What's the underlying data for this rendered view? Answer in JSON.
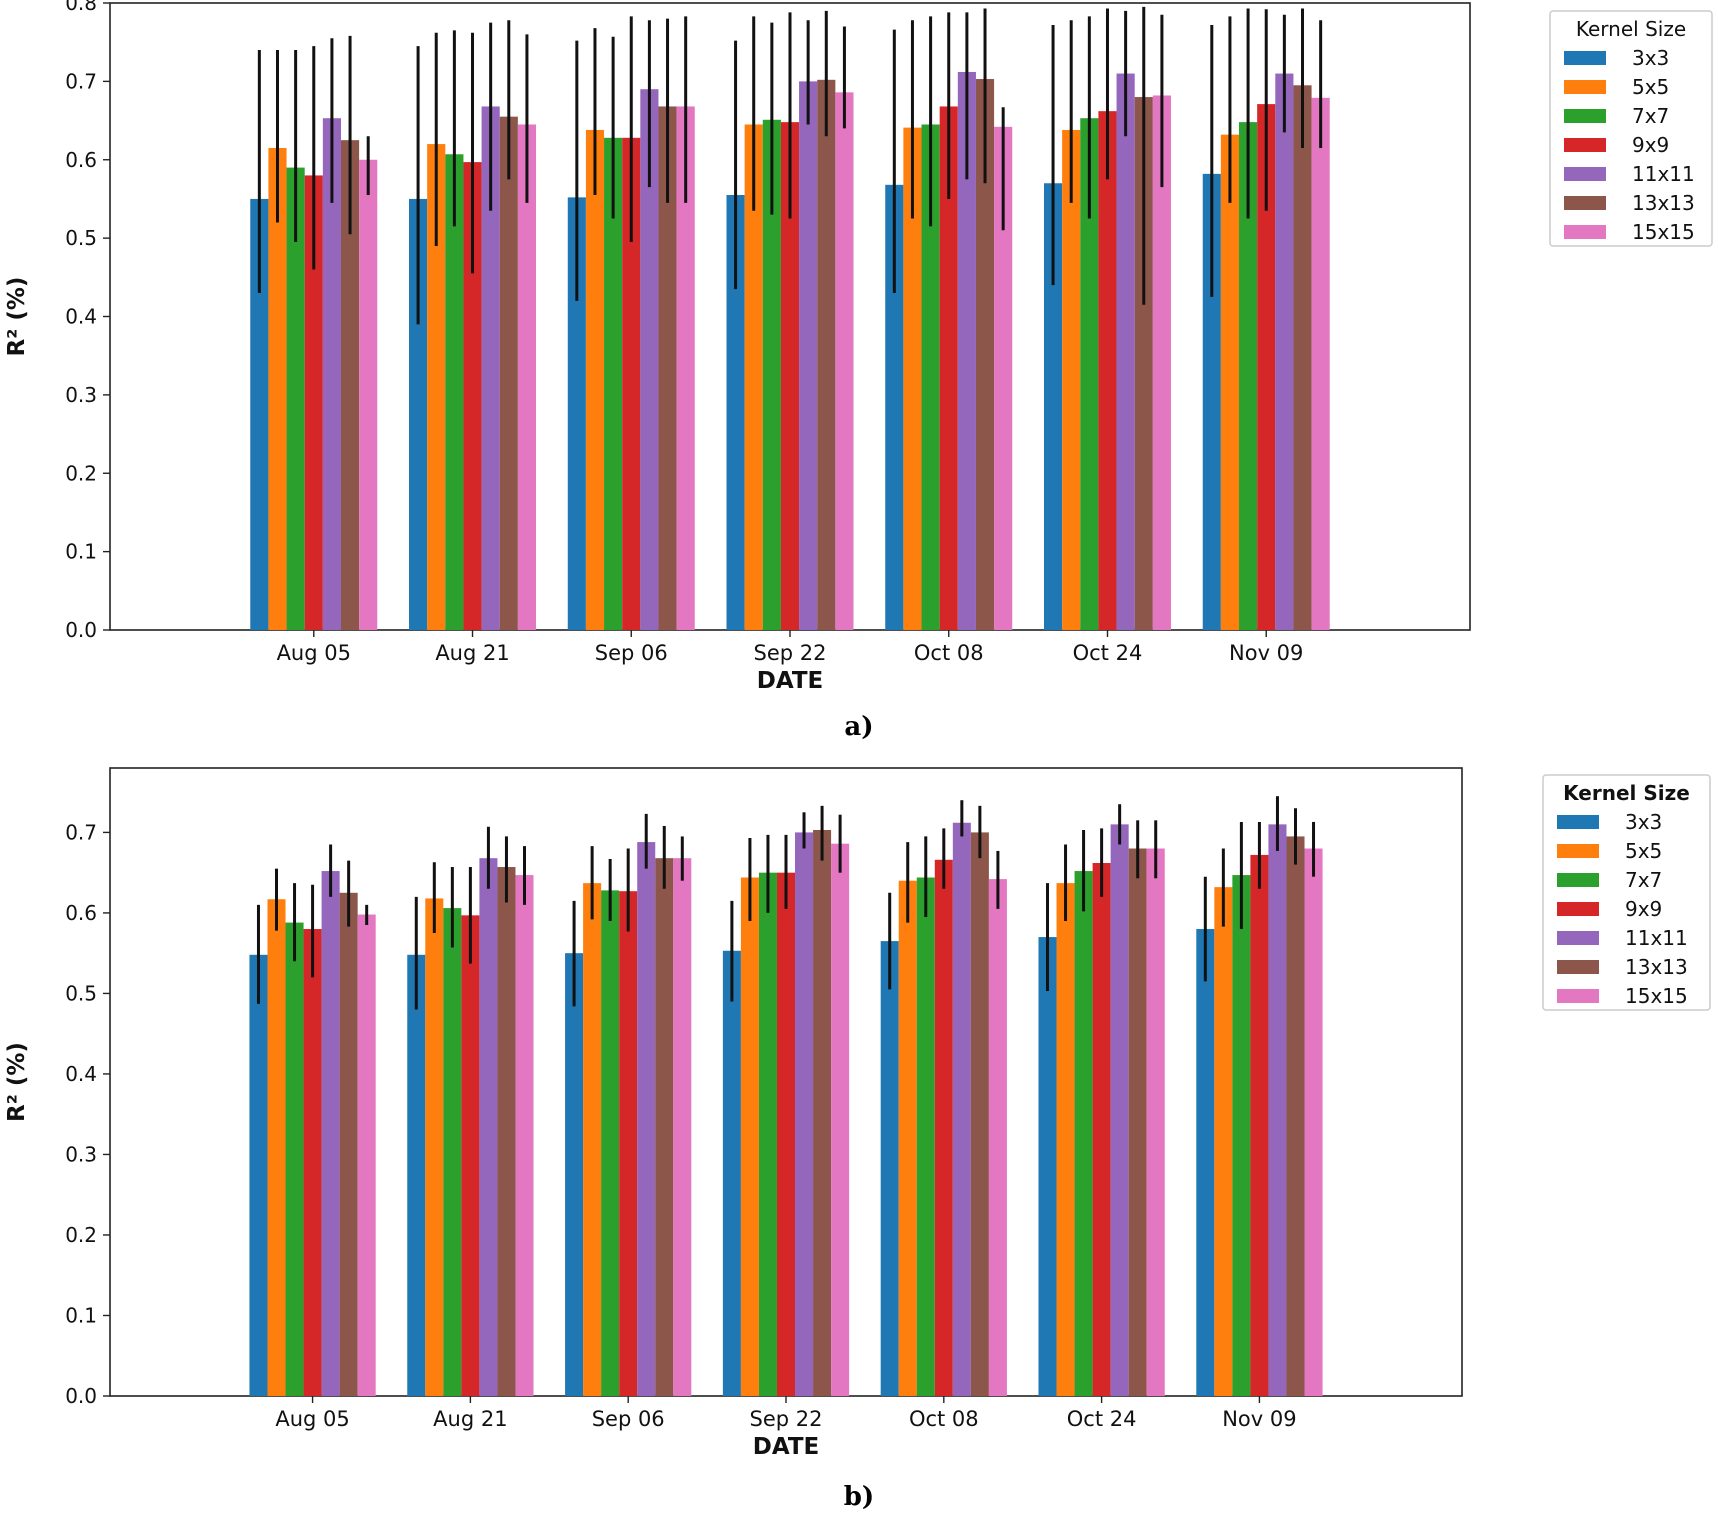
{
  "chart_data": [
    {
      "type": "bar",
      "panel_label": "a)",
      "title": "",
      "xlabel": "DATE",
      "ylabel": "R² (%)",
      "ylim": [
        0,
        0.8
      ],
      "yticks": [
        "0.0",
        "0.1",
        "0.2",
        "0.3",
        "0.4",
        "0.5",
        "0.6",
        "0.7",
        "0.8"
      ],
      "grid": false,
      "legend_title": "Kernel Size",
      "legend_placement": "outside-right-top",
      "categories": [
        "Aug 05",
        "Aug 21",
        "Sep 06",
        "Sep 22",
        "Oct 08",
        "Oct 24",
        "Nov 09"
      ],
      "series": [
        {
          "name": "3x3",
          "color": "#1f77b4",
          "values": [
            0.55,
            0.55,
            0.552,
            0.555,
            0.568,
            0.57,
            0.582
          ],
          "err_low": [
            0.43,
            0.39,
            0.42,
            0.435,
            0.43,
            0.44,
            0.425
          ],
          "err_high": [
            0.74,
            0.745,
            0.752,
            0.752,
            0.766,
            0.772,
            0.772
          ]
        },
        {
          "name": "5x5",
          "color": "#ff7f0e",
          "values": [
            0.615,
            0.62,
            0.638,
            0.645,
            0.641,
            0.638,
            0.632
          ],
          "err_low": [
            0.52,
            0.49,
            0.555,
            0.535,
            0.525,
            0.545,
            0.545
          ],
          "err_high": [
            0.74,
            0.762,
            0.768,
            0.783,
            0.778,
            0.778,
            0.783
          ]
        },
        {
          "name": "7x7",
          "color": "#2ca02c",
          "values": [
            0.59,
            0.607,
            0.628,
            0.651,
            0.645,
            0.653,
            0.648
          ],
          "err_low": [
            0.495,
            0.515,
            0.525,
            0.53,
            0.515,
            0.525,
            0.525
          ],
          "err_high": [
            0.74,
            0.765,
            0.757,
            0.775,
            0.783,
            0.783,
            0.793
          ]
        },
        {
          "name": "9x9",
          "color": "#d62728",
          "values": [
            0.58,
            0.597,
            0.628,
            0.648,
            0.668,
            0.662,
            0.671
          ],
          "err_low": [
            0.46,
            0.455,
            0.495,
            0.525,
            0.55,
            0.575,
            0.535
          ],
          "err_high": [
            0.745,
            0.762,
            0.783,
            0.788,
            0.788,
            0.793,
            0.792
          ]
        },
        {
          "name": "11x11",
          "color": "#9467bd",
          "values": [
            0.653,
            0.668,
            0.69,
            0.7,
            0.712,
            0.71,
            0.71
          ],
          "err_low": [
            0.545,
            0.535,
            0.565,
            0.645,
            0.575,
            0.63,
            0.635
          ],
          "err_high": [
            0.755,
            0.775,
            0.778,
            0.778,
            0.788,
            0.79,
            0.785
          ]
        },
        {
          "name": "13x13",
          "color": "#8c564b",
          "values": [
            0.625,
            0.655,
            0.668,
            0.702,
            0.703,
            0.68,
            0.695
          ],
          "err_low": [
            0.505,
            0.575,
            0.545,
            0.63,
            0.57,
            0.415,
            0.615
          ],
          "err_high": [
            0.758,
            0.778,
            0.78,
            0.79,
            0.793,
            0.795,
            0.793
          ]
        },
        {
          "name": "15x15",
          "color": "#e377c2",
          "values": [
            0.6,
            0.645,
            0.668,
            0.686,
            0.642,
            0.682,
            0.679
          ],
          "err_low": [
            0.555,
            0.545,
            0.545,
            0.64,
            0.51,
            0.565,
            0.615
          ],
          "err_high": [
            0.63,
            0.76,
            0.783,
            0.77,
            0.667,
            0.785,
            0.778
          ]
        }
      ]
    },
    {
      "type": "bar",
      "panel_label": "b)",
      "title": "",
      "xlabel": "DATE",
      "ylabel": "R² (%)",
      "ylim": [
        0,
        0.78
      ],
      "yticks": [
        "0.0",
        "0.1",
        "0.2",
        "0.3",
        "0.4",
        "0.5",
        "0.6",
        "0.7"
      ],
      "grid": false,
      "legend_title": "Kernel Size",
      "legend_placement": "outside-right-top",
      "categories": [
        "Aug 05",
        "Aug 21",
        "Sep 06",
        "Sep 22",
        "Oct 08",
        "Oct 24",
        "Nov 09"
      ],
      "series": [
        {
          "name": "3x3",
          "color": "#1f77b4",
          "values": [
            0.548,
            0.548,
            0.55,
            0.553,
            0.565,
            0.57,
            0.58
          ],
          "err_low": [
            0.487,
            0.48,
            0.484,
            0.49,
            0.505,
            0.503,
            0.515
          ],
          "err_high": [
            0.61,
            0.62,
            0.615,
            0.615,
            0.625,
            0.637,
            0.645
          ]
        },
        {
          "name": "5x5",
          "color": "#ff7f0e",
          "values": [
            0.617,
            0.618,
            0.637,
            0.644,
            0.64,
            0.637,
            0.632
          ],
          "err_low": [
            0.578,
            0.575,
            0.592,
            0.59,
            0.588,
            0.59,
            0.583
          ],
          "err_high": [
            0.655,
            0.663,
            0.683,
            0.693,
            0.688,
            0.685,
            0.68
          ]
        },
        {
          "name": "7x7",
          "color": "#2ca02c",
          "values": [
            0.588,
            0.606,
            0.628,
            0.65,
            0.644,
            0.652,
            0.647
          ],
          "err_low": [
            0.54,
            0.557,
            0.59,
            0.6,
            0.595,
            0.602,
            0.58
          ],
          "err_high": [
            0.637,
            0.657,
            0.667,
            0.697,
            0.695,
            0.703,
            0.713
          ]
        },
        {
          "name": "9x9",
          "color": "#d62728",
          "values": [
            0.58,
            0.597,
            0.627,
            0.65,
            0.666,
            0.662,
            0.672
          ],
          "err_low": [
            0.52,
            0.537,
            0.577,
            0.605,
            0.63,
            0.62,
            0.63
          ],
          "err_high": [
            0.635,
            0.657,
            0.68,
            0.697,
            0.705,
            0.705,
            0.713
          ]
        },
        {
          "name": "11x11",
          "color": "#9467bd",
          "values": [
            0.652,
            0.668,
            0.688,
            0.7,
            0.712,
            0.71,
            0.71
          ],
          "err_low": [
            0.62,
            0.63,
            0.655,
            0.68,
            0.695,
            0.685,
            0.677
          ],
          "err_high": [
            0.685,
            0.707,
            0.723,
            0.725,
            0.74,
            0.735,
            0.745
          ]
        },
        {
          "name": "13x13",
          "color": "#8c564b",
          "values": [
            0.625,
            0.657,
            0.668,
            0.703,
            0.7,
            0.68,
            0.695
          ],
          "err_low": [
            0.583,
            0.613,
            0.63,
            0.665,
            0.668,
            0.643,
            0.66
          ],
          "err_high": [
            0.665,
            0.695,
            0.708,
            0.733,
            0.733,
            0.715,
            0.73
          ]
        },
        {
          "name": "15x15",
          "color": "#e377c2",
          "values": [
            0.598,
            0.647,
            0.668,
            0.686,
            0.642,
            0.68,
            0.68
          ],
          "err_low": [
            0.585,
            0.61,
            0.64,
            0.65,
            0.605,
            0.643,
            0.645
          ],
          "err_high": [
            0.61,
            0.683,
            0.695,
            0.722,
            0.677,
            0.715,
            0.713
          ]
        }
      ]
    }
  ]
}
